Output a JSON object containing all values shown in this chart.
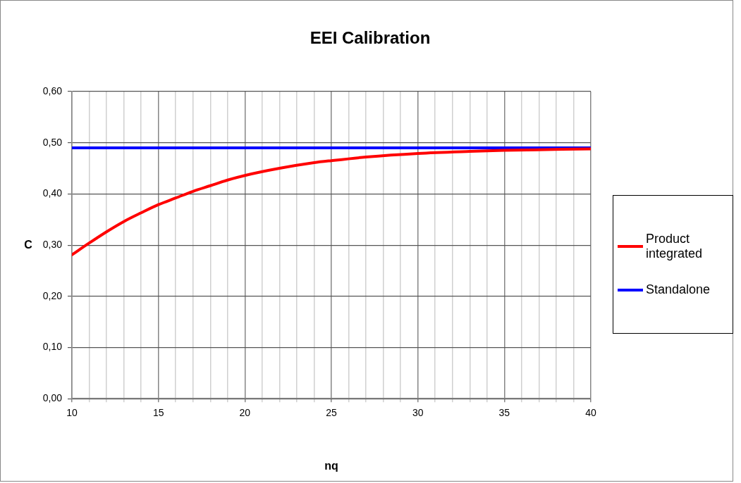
{
  "chart_data": {
    "type": "line",
    "title": "EEI Calibration",
    "xlabel": "nq",
    "ylabel": "C",
    "xlim": [
      10,
      40
    ],
    "xticks": [
      10,
      {
        "value": 11,
        "label": null
      },
      {
        "value": 12,
        "label": null
      },
      {
        "value": 13,
        "label": null
      },
      {
        "value": 14,
        "label": null
      },
      15,
      {
        "value": 16,
        "label": null
      },
      {
        "value": 17,
        "label": null
      },
      {
        "value": 18,
        "label": null
      },
      {
        "value": 19,
        "label": null
      },
      20,
      {
        "value": 21,
        "label": null
      },
      {
        "value": 22,
        "label": null
      },
      {
        "value": 23,
        "label": null
      },
      {
        "value": 24,
        "label": null
      },
      25,
      {
        "value": 26,
        "label": null
      },
      {
        "value": 27,
        "label": null
      },
      {
        "value": 28,
        "label": null
      },
      {
        "value": 29,
        "label": null
      },
      30,
      {
        "value": 31,
        "label": null
      },
      {
        "value": 32,
        "label": null
      },
      {
        "value": 33,
        "label": null
      },
      {
        "value": 34,
        "label": null
      },
      35,
      {
        "value": 36,
        "label": null
      },
      {
        "value": 37,
        "label": null
      },
      {
        "value": 38,
        "label": null
      },
      {
        "value": 39,
        "label": null
      },
      40
    ],
    "ylim": [
      0,
      0.6
    ],
    "yticks": [
      {
        "value": 0,
        "label": "0,00"
      },
      {
        "value": 0.1,
        "label": "0,10"
      },
      {
        "value": 0.2,
        "label": "0,20"
      },
      {
        "value": 0.3,
        "label": "0,30"
      },
      {
        "value": 0.4,
        "label": "0,40"
      },
      {
        "value": 0.5,
        "label": "0,50"
      },
      {
        "value": 0.6,
        "label": "0,60"
      }
    ],
    "grid": true,
    "legend": "right",
    "marker": "none",
    "line_style": "solid",
    "series": [
      {
        "name": "Product integrated",
        "color": "#ff0000",
        "x": [
          10,
          11,
          12,
          13,
          14,
          15,
          16,
          17,
          18,
          19,
          20,
          22,
          24,
          25,
          27,
          30,
          33,
          35,
          40
        ],
        "values": [
          0.281,
          0.304,
          0.326,
          0.346,
          0.363,
          0.379,
          0.392,
          0.405,
          0.416,
          0.427,
          0.436,
          0.45,
          0.461,
          0.465,
          0.472,
          0.479,
          0.483,
          0.485,
          0.488
        ]
      },
      {
        "name": "Standalone",
        "color": "#0000ff",
        "x": [
          10,
          40
        ],
        "values": [
          0.49,
          0.49
        ]
      }
    ]
  }
}
